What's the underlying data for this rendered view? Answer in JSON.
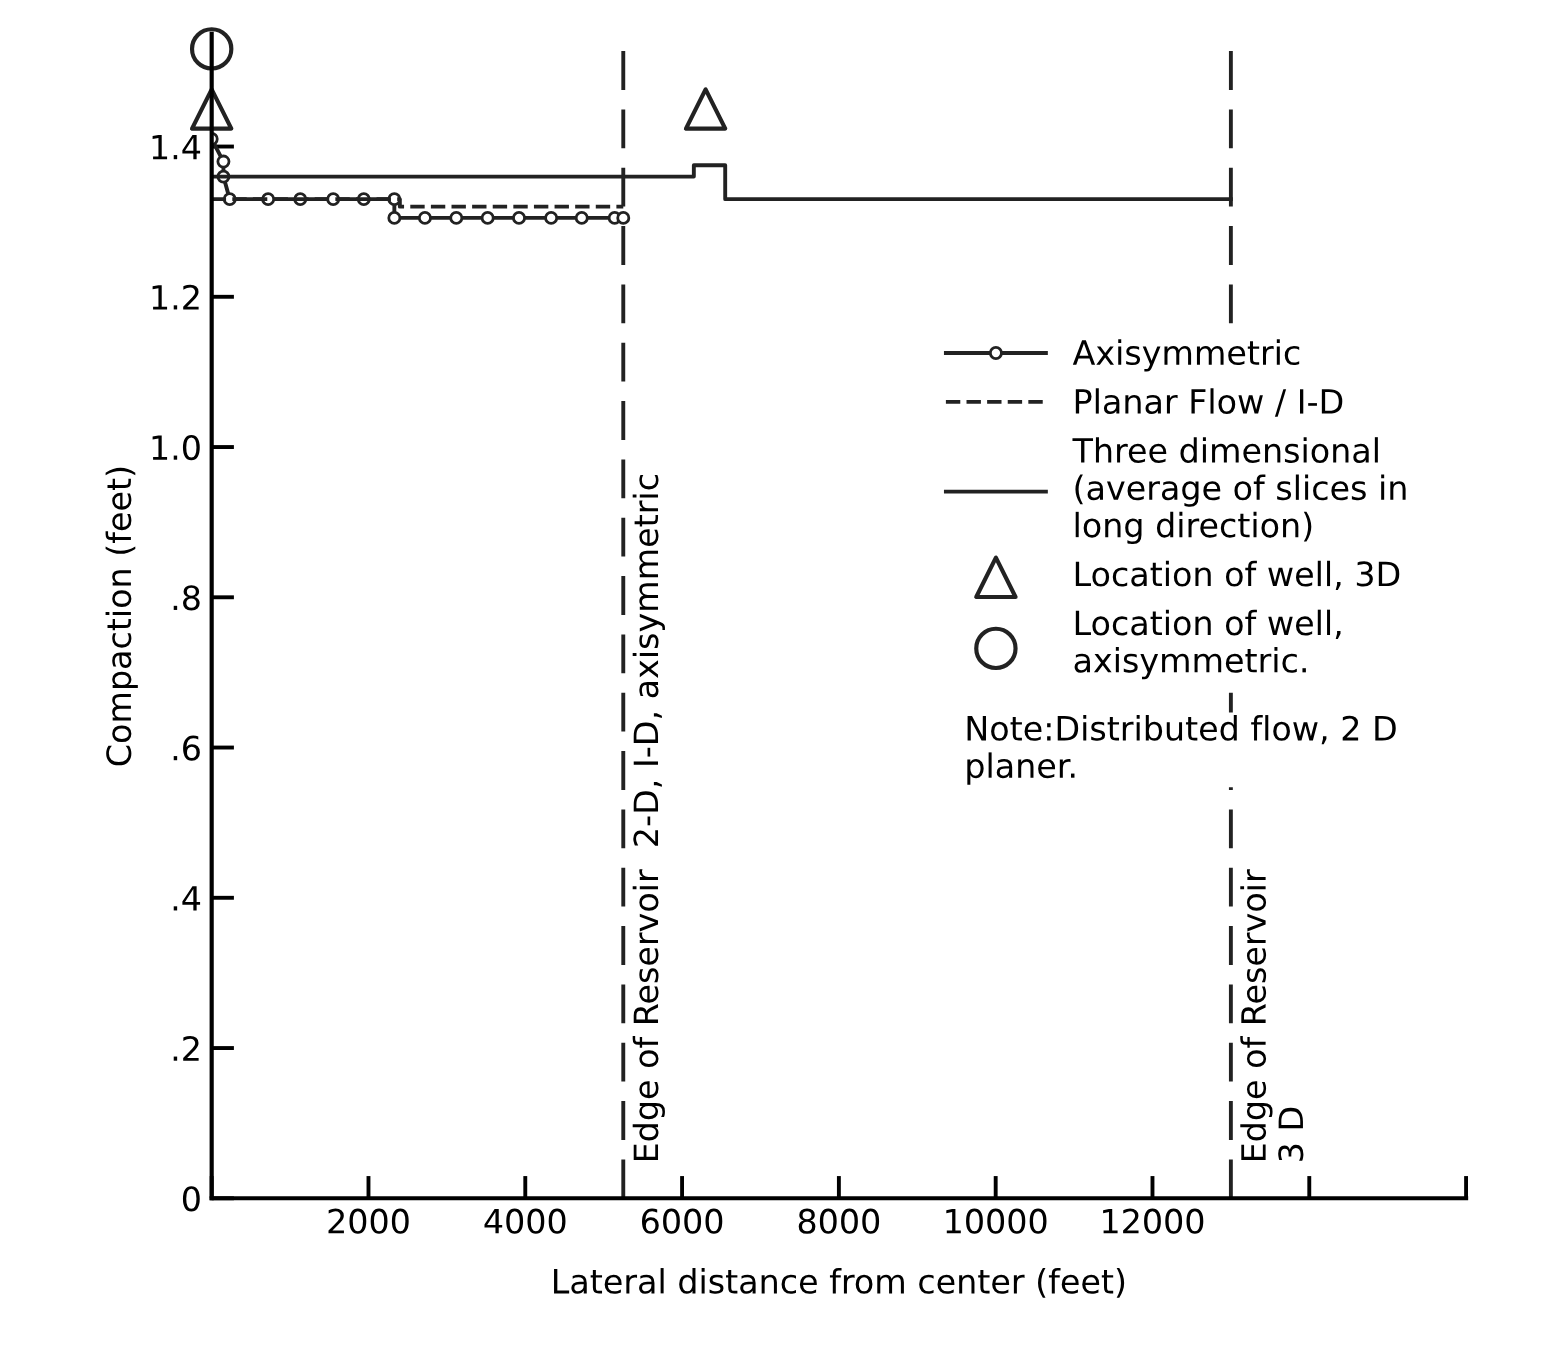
{
  "chart_data": {
    "type": "line",
    "xlabel": "Lateral distance from center (feet)",
    "ylabel": "Compaction (feet)",
    "xlim": [
      0,
      16000
    ],
    "ylim": [
      0,
      1.55
    ],
    "xticks": [
      {
        "value": 0,
        "label": null
      },
      2000,
      4000,
      6000,
      8000,
      10000,
      12000,
      {
        "value": 14000,
        "label": null
      },
      {
        "value": 16000,
        "label": null
      }
    ],
    "yticks": [
      0,
      {
        "value": 0.2,
        "label": ".2"
      },
      {
        "value": 0.4,
        "label": ".4"
      },
      {
        "value": 0.6,
        "label": ".6"
      },
      {
        "value": 0.8,
        "label": ".8"
      },
      {
        "value": 1.0,
        "label": "1.0"
      },
      {
        "value": 1.2,
        "label": "1.2"
      },
      {
        "value": 1.4,
        "label": "1.4"
      }
    ],
    "grid": false,
    "legend": "right",
    "series": [
      {
        "name": "Axisymmetric",
        "color": "#222222",
        "marker": "circle",
        "line_style": "solid",
        "x": [
          0,
          150,
          150,
          230,
          720,
          1130,
          1550,
          1940,
          2330,
          2330,
          2720,
          3120,
          3520,
          3920,
          4330,
          4720,
          5140,
          5250
        ],
        "values": [
          1.41,
          1.38,
          1.36,
          1.33,
          1.33,
          1.33,
          1.33,
          1.33,
          1.33,
          1.305,
          1.305,
          1.305,
          1.305,
          1.305,
          1.305,
          1.305,
          1.305,
          1.305
        ]
      },
      {
        "name": "Planar Flow / I-D",
        "color": "#222222",
        "marker": "none",
        "line_style": "dashed",
        "x": [
          0,
          2400,
          2400,
          5250
        ],
        "values": [
          1.33,
          1.33,
          1.32,
          1.32
        ]
      },
      {
        "name": "Three dimensional\n(average of slices in\nlong direction)",
        "color": "#222222",
        "marker": "none",
        "line_style": "solid",
        "x": [
          0,
          6150,
          6150,
          6550,
          6550,
          13000
        ],
        "values": [
          1.36,
          1.36,
          1.375,
          1.375,
          1.33,
          1.33
        ]
      },
      {
        "name": "Location of well, 3D",
        "type": "scatter",
        "color": "#222222",
        "marker": "triangle",
        "x": [
          0,
          6300
        ],
        "values": [
          1.45,
          1.45
        ]
      },
      {
        "name": "Location of well,\naxisymmetric.",
        "type": "scatter",
        "color": "#222222",
        "marker": "circle",
        "x": [
          0
        ],
        "values": [
          1.53
        ]
      }
    ],
    "ref_lines": [
      {
        "axis": "x",
        "value": 5250,
        "label": "Edge of Reservoir  2-D, I-D, axisymmetric",
        "line_style": "dashed",
        "color": "#222222"
      },
      {
        "axis": "x",
        "value": 13000,
        "label": "Edge of Reservoir\n3 D",
        "line_style": "dashed",
        "color": "#222222"
      }
    ],
    "annotations": [
      "Note:Distributed flow, 2 D\nplaner."
    ]
  }
}
